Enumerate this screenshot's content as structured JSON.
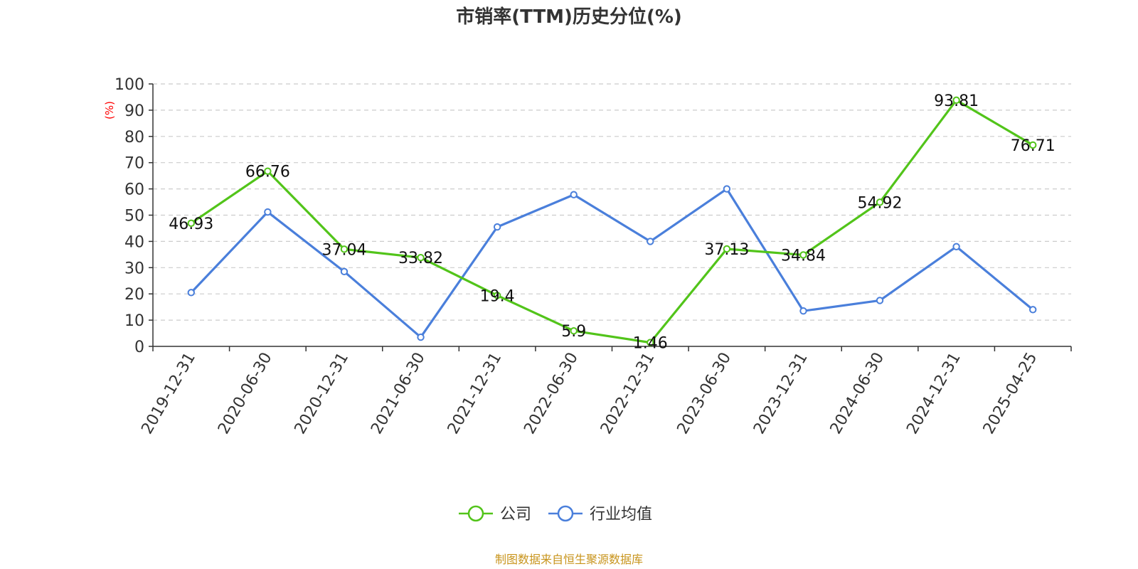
{
  "chart_data": {
    "type": "line",
    "title": "市销率(TTM)历史分位(%)",
    "ylabel": "(%)",
    "ylim": [
      0,
      100
    ],
    "yticks": [
      0,
      10,
      20,
      30,
      40,
      50,
      60,
      70,
      80,
      90,
      100
    ],
    "categories": [
      "2019-12-31",
      "2020-06-30",
      "2020-12-31",
      "2021-06-30",
      "2021-12-31",
      "2022-06-30",
      "2022-12-31",
      "2023-06-30",
      "2023-12-31",
      "2024-06-30",
      "2024-12-31",
      "2025-04-25"
    ],
    "series": [
      {
        "name": "公司",
        "color": "#52c41a",
        "values": [
          46.93,
          66.76,
          37.04,
          33.82,
          19.4,
          5.9,
          1.46,
          37.13,
          34.84,
          54.92,
          93.81,
          76.71
        ],
        "labels": [
          "46.93",
          "66.76",
          "37.04",
          "33.82",
          "19.4",
          "5.9",
          "1.46",
          "37.13",
          "34.84",
          "54.92",
          "93.81",
          "76.71"
        ]
      },
      {
        "name": "行业均值",
        "color": "#4a7fdb",
        "values": [
          20.5,
          51.2,
          28.5,
          3.5,
          45.5,
          57.8,
          40.0,
          60.0,
          13.5,
          17.5,
          38.0,
          14.0
        ]
      }
    ],
    "grid": "horizontal-dashed",
    "legend": "bottom-center",
    "source": "制图数据来自恒生聚源数据库",
    "source_color": "#c8941c",
    "unit_color": "#ff0000"
  }
}
